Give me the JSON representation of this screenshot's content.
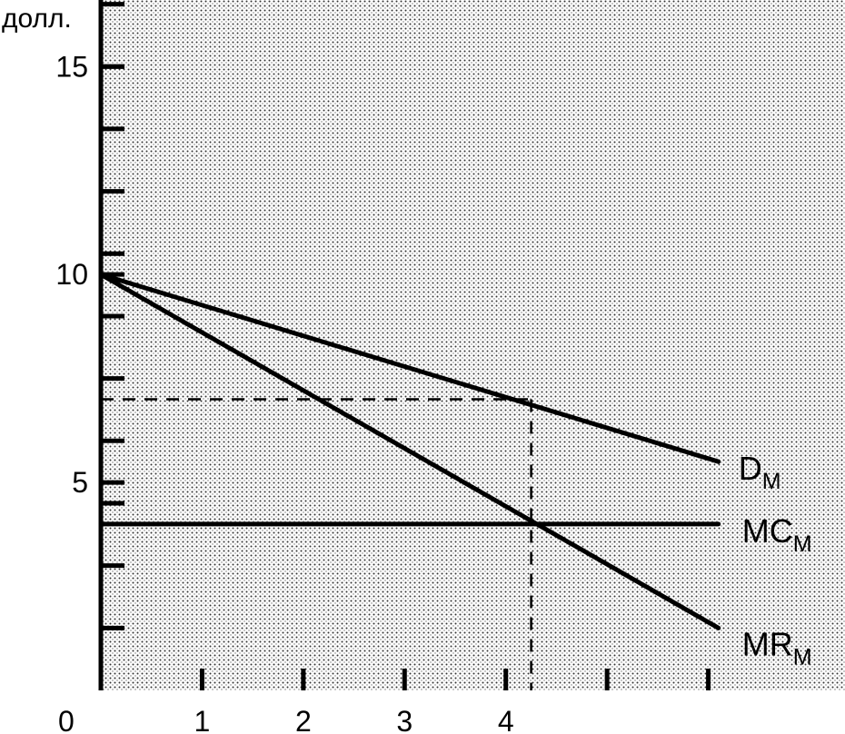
{
  "chart_data": {
    "type": "line",
    "ylabel": "долл.",
    "origin_label": "0",
    "x_ticks": [
      1,
      2,
      3,
      4
    ],
    "x_minor_ticks": [
      5,
      6
    ],
    "y_ticks": [
      5,
      10,
      15
    ],
    "y_minor_step": 1.5,
    "xlim": [
      0,
      7.35
    ],
    "ylim": [
      0,
      16.6
    ],
    "series": [
      {
        "name": "D",
        "subscript": "M",
        "x": [
          0,
          6.1
        ],
        "y": [
          10,
          5.5
        ]
      },
      {
        "name": "MC",
        "subscript": "M",
        "x": [
          0,
          6.1
        ],
        "y": [
          4,
          4
        ]
      },
      {
        "name": "MR",
        "subscript": "M",
        "x": [
          0,
          6.1
        ],
        "y": [
          10,
          1.5
        ]
      }
    ],
    "guides": {
      "quantity": 4.25,
      "price": 7,
      "marginal_cost": 4
    },
    "colors": {
      "background_pattern": "#dcdcdc",
      "lines": "#000000"
    }
  }
}
